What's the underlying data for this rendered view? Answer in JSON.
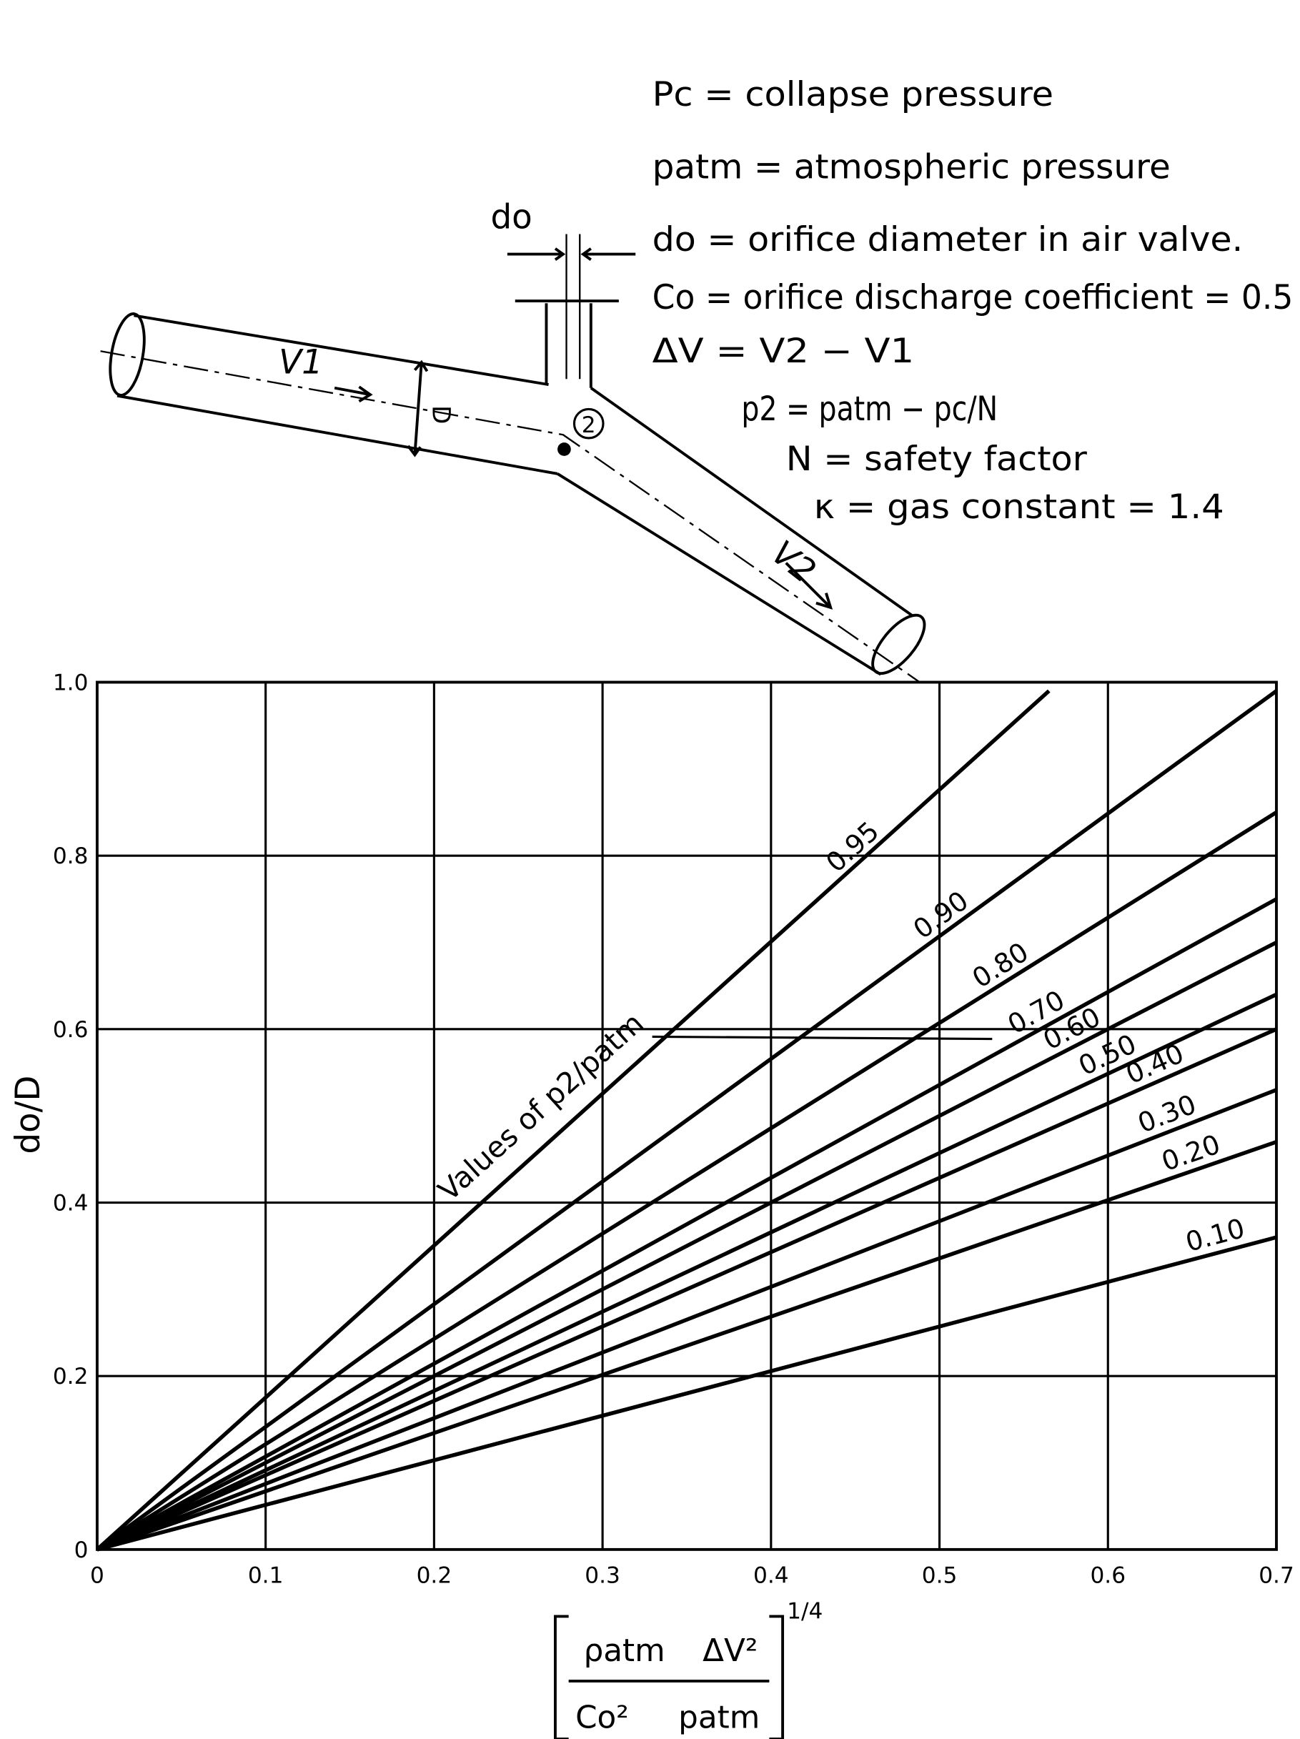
{
  "diagram": {
    "definitions": [
      "Pc = collapse pressure",
      "patm = atmospheric pressure",
      "do = orifice diameter in air valve.",
      "Co = orifice discharge coefficient = 0.5",
      "ΔV = V2 − V1",
      "p2 = patm − pc/N",
      "N = safety factor",
      "κ = gas constant = 1.4"
    ],
    "labels": {
      "do": "do",
      "V1": "V1",
      "V2": "V2",
      "D": "D",
      "point": "2"
    }
  },
  "chart_data": {
    "type": "line",
    "annotation": "Values of p2/patm",
    "x_label": [
      "ρatm",
      "ΔV²",
      "Co²",
      "patm",
      "1/4"
    ],
    "y_label": "do/D",
    "xlim": [
      0,
      0.7
    ],
    "ylim": [
      0,
      1
    ],
    "xticks": [
      0,
      0.1,
      0.2,
      0.3,
      0.4,
      0.5,
      0.6,
      0.7
    ],
    "yticks": [
      0,
      0.2,
      0.4,
      0.6,
      0.8,
      {
        "value": 1,
        "label": "1.0"
      }
    ],
    "grid": true,
    "series": [
      {
        "name": "0.95",
        "color": "#000000",
        "x": [
          0,
          0.565
        ],
        "values": [
          0,
          0.99
        ]
      },
      {
        "name": "0.90",
        "color": "#000000",
        "x": [
          0,
          0.7
        ],
        "values": [
          0,
          0.99
        ]
      },
      {
        "name": "0.80",
        "color": "#000000",
        "x": [
          0,
          0.7
        ],
        "values": [
          0,
          0.85
        ]
      },
      {
        "name": "0.70",
        "color": "#000000",
        "x": [
          0,
          0.7
        ],
        "values": [
          0,
          0.75
        ]
      },
      {
        "name": "0.60",
        "color": "#000000",
        "x": [
          0,
          0.7
        ],
        "values": [
          0,
          0.7
        ]
      },
      {
        "name": "0.50",
        "color": "#000000",
        "x": [
          0,
          0.7
        ],
        "values": [
          0,
          0.64
        ]
      },
      {
        "name": "0.40",
        "color": "#000000",
        "x": [
          0,
          0.7
        ],
        "values": [
          0,
          0.6
        ]
      },
      {
        "name": "0.30",
        "color": "#000000",
        "x": [
          0,
          0.7
        ],
        "values": [
          0,
          0.53
        ]
      },
      {
        "name": "0.20",
        "color": "#000000",
        "x": [
          0,
          0.7
        ],
        "values": [
          0,
          0.47
        ]
      },
      {
        "name": "0.10",
        "color": "#000000",
        "x": [
          0,
          0.7
        ],
        "values": [
          0,
          0.36
        ]
      }
    ]
  }
}
